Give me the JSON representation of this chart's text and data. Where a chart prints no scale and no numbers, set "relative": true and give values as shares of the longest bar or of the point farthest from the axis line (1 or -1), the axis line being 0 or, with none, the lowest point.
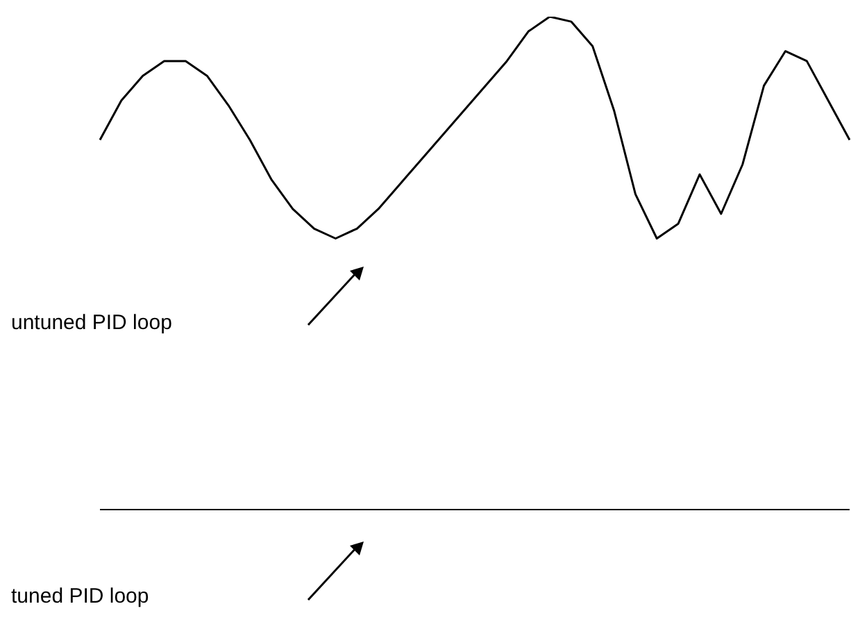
{
  "chart_data": {
    "type": "line",
    "relative": true,
    "categories": [
      null,
      null,
      null,
      null,
      null,
      null,
      null,
      null,
      null,
      null,
      null,
      null,
      null,
      null,
      null,
      null,
      null,
      null,
      null,
      null,
      null,
      null,
      null,
      null,
      null,
      null,
      null,
      null,
      null,
      null,
      null,
      null,
      null,
      null,
      null,
      null
    ],
    "series": [
      {
        "color": "#000000",
        "values": [
          0.75,
          0.83,
          0.88,
          0.91,
          0.91,
          0.88,
          0.82,
          0.75,
          0.67,
          0.61,
          0.57,
          0.55,
          0.57,
          0.61,
          0.66,
          0.71,
          0.76,
          0.81,
          0.86,
          0.91,
          0.97,
          1,
          0.99,
          0.94,
          0.81,
          0.64,
          0.55,
          0.58,
          0.68,
          0.6,
          0.7,
          0.86,
          0.93,
          0.91,
          0.83,
          0.75
        ]
      }
    ],
    "ref_lines": [
      {
        "axis": "y",
        "value": 0,
        "label": "tuned PID loop",
        "color": "#000000"
      }
    ],
    "legend": false,
    "grid": false,
    "annotations": [
      "untuned PID loop"
    ]
  }
}
